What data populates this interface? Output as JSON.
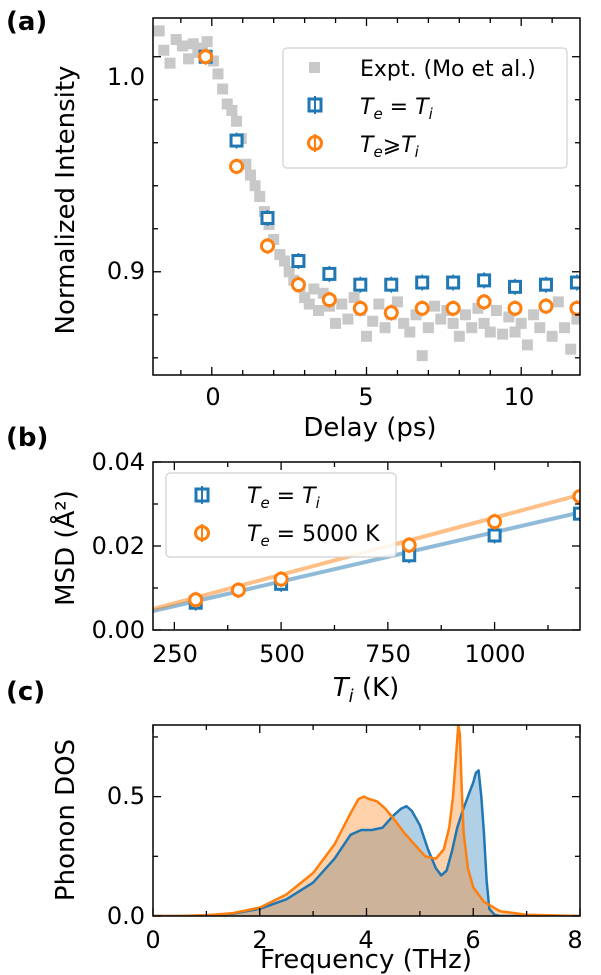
{
  "chart_data": [
    {
      "panel": "(a)",
      "type": "scatter",
      "xlabel": "Delay (ps)",
      "ylabel": "Normalized Intensity",
      "xlim": [
        -1.9,
        11.9
      ],
      "ylim": [
        0.852,
        1.018
      ],
      "xticks": [
        "0",
        "5",
        "10"
      ],
      "yticks": [
        "0.9",
        "1.0"
      ],
      "legend": {
        "placement": "top-right",
        "entries": [
          "Expt. (Mo et al.)",
          "T_e = T_i",
          "T_e ⩾ T_i"
        ]
      },
      "series": [
        {
          "name": "Expt. (Mo et al.)",
          "color": "#c8c8c8",
          "marker": "square",
          "x": [
            -1.7,
            -1.55,
            -1.35,
            -1.15,
            -0.95,
            -0.75,
            -0.6,
            -0.45,
            -0.3,
            -0.15,
            0.05,
            0.2,
            0.35,
            0.5,
            0.65,
            0.8,
            0.95,
            1.1,
            1.25,
            1.4,
            1.55,
            1.7,
            1.85,
            2.0,
            2.2,
            2.35,
            2.5,
            2.65,
            2.85,
            3.0,
            3.15,
            3.3,
            3.45,
            3.6,
            3.8,
            4.0,
            4.2,
            4.4,
            4.6,
            4.8,
            5.0,
            5.2,
            5.4,
            5.6,
            5.8,
            6.0,
            6.2,
            6.4,
            6.6,
            6.8,
            7.0,
            7.2,
            7.4,
            7.6,
            7.8,
            8.0,
            8.2,
            8.4,
            8.6,
            8.8,
            9.0,
            9.2,
            9.4,
            9.6,
            9.8,
            10.0,
            10.2,
            10.4,
            10.6,
            10.8,
            11.0,
            11.2,
            11.4,
            11.6,
            11.8
          ],
          "y": [
            1.012,
            1.003,
            0.997,
            1.008,
            1.005,
            0.999,
            1.006,
            1.002,
            1.004,
            1.007,
            0.998,
            0.992,
            0.985,
            0.978,
            0.975,
            0.97,
            0.962,
            0.95,
            0.945,
            0.94,
            0.935,
            0.928,
            0.922,
            0.915,
            0.908,
            0.905,
            0.9,
            0.896,
            0.893,
            0.888,
            0.885,
            0.892,
            0.882,
            0.89,
            0.884,
            0.876,
            0.885,
            0.878,
            0.888,
            0.882,
            0.87,
            0.877,
            0.885,
            0.874,
            0.88,
            0.886,
            0.876,
            0.872,
            0.88,
            0.861,
            0.874,
            0.884,
            0.878,
            0.882,
            0.876,
            0.87,
            0.88,
            0.874,
            0.883,
            0.876,
            0.872,
            0.882,
            0.871,
            0.879,
            0.872,
            0.876,
            0.866,
            0.88,
            0.874,
            0.884,
            0.87,
            0.886,
            0.874,
            0.864,
            0.878
          ]
        },
        {
          "name": "T_e = T_i",
          "color": "#1f77b4",
          "marker": "square-open",
          "x": [
            -0.2,
            0.8,
            1.8,
            2.8,
            3.8,
            4.8,
            5.8,
            6.8,
            7.8,
            8.8,
            9.8,
            10.8,
            11.8
          ],
          "y": [
            1.0,
            0.961,
            0.925,
            0.905,
            0.899,
            0.894,
            0.894,
            0.895,
            0.895,
            0.896,
            0.893,
            0.894,
            0.895
          ]
        },
        {
          "name": "T_e ⩾ T_i",
          "color": "#ff7f0e",
          "marker": "circle-open",
          "x": [
            -0.2,
            0.8,
            1.8,
            2.8,
            3.8,
            4.8,
            5.8,
            6.8,
            7.8,
            8.8,
            9.8,
            10.8,
            11.8
          ],
          "y": [
            1.0,
            0.949,
            0.912,
            0.894,
            0.887,
            0.883,
            0.881,
            0.883,
            0.883,
            0.886,
            0.883,
            0.884,
            0.883
          ]
        }
      ]
    },
    {
      "panel": "(b)",
      "type": "scatter",
      "xlabel": "T_i (K)",
      "ylabel": "MSD (Å²)",
      "xlim": [
        200,
        1200
      ],
      "ylim": [
        0.0,
        0.04
      ],
      "xticks": [
        "250",
        "500",
        "750",
        "1000"
      ],
      "yticks": [
        "0.00",
        "0.02",
        "0.04"
      ],
      "legend": {
        "placement": "top-left",
        "entries": [
          "T_e = T_i",
          "T_e = 5000 K"
        ]
      },
      "series": [
        {
          "name": "T_e = T_i",
          "color": "#1f77b4",
          "marker": "square-open",
          "x": [
            300,
            500,
            800,
            1000,
            1200
          ],
          "y": [
            0.0065,
            0.011,
            0.0178,
            0.0225,
            0.0277
          ],
          "fit": {
            "x": [
              200,
              1200
            ],
            "y": [
              0.0045,
              0.028
            ]
          }
        },
        {
          "name": "T_e = 5000 K",
          "color": "#ff7f0e",
          "marker": "circle-open",
          "x": [
            300,
            400,
            500,
            800,
            1000,
            1200
          ],
          "y": [
            0.0072,
            0.0095,
            0.0121,
            0.0202,
            0.0258,
            0.0318
          ],
          "fit": {
            "x": [
              200,
              1200
            ],
            "y": [
              0.005,
              0.0322
            ]
          }
        }
      ]
    },
    {
      "panel": "(c)",
      "type": "area",
      "xlabel": "Frequency (THz)",
      "ylabel": "Phonon DOS",
      "xlim": [
        0,
        8
      ],
      "ylim": [
        0,
        0.8
      ],
      "xticks": [
        "0",
        "2",
        "4",
        "6",
        "8"
      ],
      "yticks": [
        "0.0",
        "0.5"
      ],
      "series": [
        {
          "color": "#1f77b4",
          "fill": "#aecde3",
          "x": [
            0.0,
            0.5,
            1.0,
            1.5,
            2.0,
            2.5,
            3.0,
            3.4,
            3.7,
            3.9,
            4.1,
            4.3,
            4.5,
            4.65,
            4.75,
            4.85,
            5.0,
            5.15,
            5.3,
            5.4,
            5.5,
            5.6,
            5.7,
            5.8,
            5.9,
            6.0,
            6.05,
            6.1,
            6.15,
            6.2,
            6.25,
            6.3,
            6.4,
            6.5,
            7.0,
            8.0
          ],
          "y": [
            0.0,
            0.0,
            0.003,
            0.01,
            0.03,
            0.07,
            0.14,
            0.24,
            0.34,
            0.36,
            0.36,
            0.37,
            0.42,
            0.45,
            0.46,
            0.44,
            0.38,
            0.28,
            0.2,
            0.17,
            0.19,
            0.27,
            0.37,
            0.44,
            0.5,
            0.56,
            0.6,
            0.61,
            0.5,
            0.35,
            0.15,
            0.03,
            0.005,
            0.0,
            0.0,
            0.0
          ]
        },
        {
          "color": "#ff7f0e",
          "fill": "#fbbf8f",
          "x": [
            0.0,
            0.5,
            1.0,
            1.5,
            2.0,
            2.5,
            3.0,
            3.4,
            3.7,
            3.85,
            3.95,
            4.05,
            4.2,
            4.35,
            4.5,
            4.7,
            4.9,
            5.1,
            5.3,
            5.45,
            5.55,
            5.62,
            5.68,
            5.72,
            5.75,
            5.78,
            5.82,
            5.9,
            6.0,
            6.2,
            6.5,
            7.0,
            8.0
          ],
          "y": [
            0.0,
            0.0,
            0.003,
            0.012,
            0.035,
            0.09,
            0.18,
            0.3,
            0.43,
            0.49,
            0.5,
            0.49,
            0.48,
            0.45,
            0.41,
            0.35,
            0.3,
            0.25,
            0.24,
            0.28,
            0.37,
            0.5,
            0.68,
            0.8,
            0.76,
            0.56,
            0.35,
            0.2,
            0.12,
            0.06,
            0.02,
            0.005,
            0.0
          ]
        }
      ]
    }
  ]
}
